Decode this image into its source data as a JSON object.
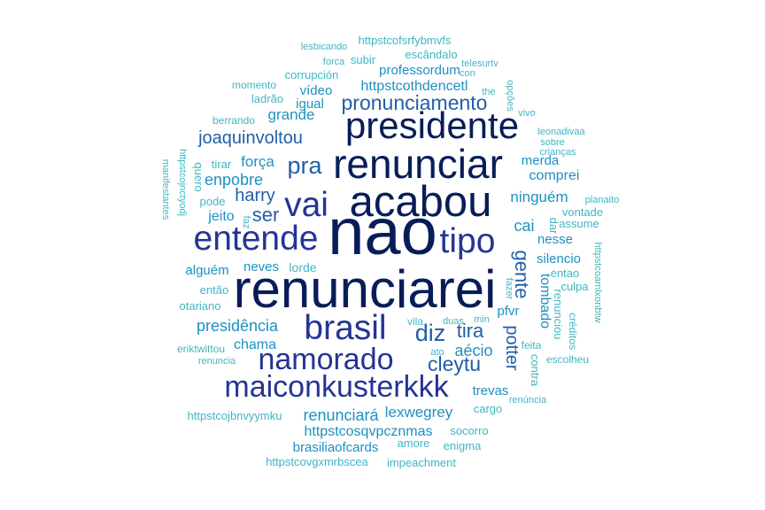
{
  "colors": {
    "background": "#ffffff",
    "scale": [
      "#081d58",
      "#253494",
      "#225ea8",
      "#1d91c0",
      "#41b6c4"
    ]
  },
  "words": [
    {
      "text": "nao",
      "weight": 20.0
    },
    {
      "text": "renunciarei",
      "weight": 16.0
    },
    {
      "text": "acabou",
      "weight": 13.0
    },
    {
      "text": "renunciar",
      "weight": 12.0
    },
    {
      "text": "presidente",
      "weight": 11.0
    },
    {
      "text": "brasil",
      "weight": 10.0
    },
    {
      "text": "vai",
      "weight": 10.0
    },
    {
      "text": "entende",
      "weight": 10.0
    },
    {
      "text": "tipo",
      "weight": 10.0
    },
    {
      "text": "maiconkusterkkk",
      "weight": 8.5
    },
    {
      "text": "namorado",
      "weight": 8.5
    },
    {
      "text": "pra",
      "weight": 6.5
    },
    {
      "text": "diz",
      "weight": 6.5
    },
    {
      "text": "pronunciamento",
      "weight": 5.5
    },
    {
      "text": "cleytu",
      "weight": 5.5
    },
    {
      "text": "ser",
      "weight": 5.0
    },
    {
      "text": "gente",
      "weight": 5.0
    },
    {
      "text": "tira",
      "weight": 5.0
    },
    {
      "text": "joaquinvoltou",
      "weight": 4.5
    },
    {
      "text": "harry",
      "weight": 4.5
    },
    {
      "text": "potter",
      "weight": 4.5
    },
    {
      "text": "enpobre",
      "weight": 4.0
    },
    {
      "text": "presidência",
      "weight": 4.0
    },
    {
      "text": "renunciará",
      "weight": 4.0
    },
    {
      "text": "cai",
      "weight": 4.0
    },
    {
      "text": "aécio",
      "weight": 4.0
    },
    {
      "text": "grande",
      "weight": 3.6
    },
    {
      "text": "força",
      "weight": 3.6
    },
    {
      "text": "ninguém",
      "weight": 3.6
    },
    {
      "text": "lexwegrey",
      "weight": 3.6
    },
    {
      "text": "jeito",
      "weight": 3.2
    },
    {
      "text": "httpstcothdencetl",
      "weight": 3.2
    },
    {
      "text": "comprei",
      "weight": 3.2
    },
    {
      "text": "tombado",
      "weight": 3.2
    },
    {
      "text": "chama",
      "weight": 3.2
    },
    {
      "text": "httpstcosqvpcznmas",
      "weight": 3.2
    },
    {
      "text": "professordum",
      "weight": 3.0
    },
    {
      "text": "vídeo",
      "weight": 3.0
    },
    {
      "text": "silencio",
      "weight": 3.0
    },
    {
      "text": "nesse",
      "weight": 3.0
    },
    {
      "text": "merda",
      "weight": 3.0
    },
    {
      "text": "neves",
      "weight": 3.0
    },
    {
      "text": "alguém",
      "weight": 3.0
    },
    {
      "text": "pfvr",
      "weight": 3.0
    },
    {
      "text": "trevas",
      "weight": 3.0
    },
    {
      "text": "brasiliaofcards",
      "weight": 3.0
    },
    {
      "text": "igual",
      "weight": 3.0
    },
    {
      "text": "lorde",
      "weight": 2.8
    },
    {
      "text": "corrupción",
      "weight": 2.6
    },
    {
      "text": "dar",
      "weight": 2.6
    },
    {
      "text": "tirar",
      "weight": 2.6
    },
    {
      "text": "pode",
      "weight": 2.6
    },
    {
      "text": "contra",
      "weight": 2.6
    },
    {
      "text": "ladrão",
      "weight": 2.6
    },
    {
      "text": "então",
      "weight": 2.6
    },
    {
      "text": "otariano",
      "weight": 2.6
    },
    {
      "text": "renunciou",
      "weight": 2.6
    },
    {
      "text": "amore",
      "weight": 2.6
    },
    {
      "text": "socorro",
      "weight": 2.6
    },
    {
      "text": "enigma",
      "weight": 2.4
    },
    {
      "text": "impeachment",
      "weight": 2.4
    },
    {
      "text": "httpstcovgxmrbscea",
      "weight": 2.4
    },
    {
      "text": "httpstcojbnvyymku",
      "weight": 2.4
    },
    {
      "text": "cargo",
      "weight": 2.4
    },
    {
      "text": "entao",
      "weight": 2.4
    },
    {
      "text": "culpa",
      "weight": 2.4
    },
    {
      "text": "vontade",
      "weight": 2.4
    },
    {
      "text": "assume",
      "weight": 2.4
    },
    {
      "text": "escândalo",
      "weight": 2.4
    },
    {
      "text": "httpstcofsrfybmvfs",
      "weight": 2.4
    },
    {
      "text": "subir",
      "weight": 2.4
    },
    {
      "text": "quero",
      "weight": 2.4
    },
    {
      "text": "momento",
      "weight": 2.2
    },
    {
      "text": "berrando",
      "weight": 2.2
    },
    {
      "text": "vila",
      "weight": 2.2
    },
    {
      "text": "feita",
      "weight": 2.2
    },
    {
      "text": "escolheu",
      "weight": 2.2
    },
    {
      "text": "créditos",
      "weight": 2.2
    },
    {
      "text": "eriktwittou",
      "weight": 2.2
    },
    {
      "text": "renuncia",
      "weight": 2.0
    },
    {
      "text": "renúncia",
      "weight": 2.0
    },
    {
      "text": "crianças",
      "weight": 2.0
    },
    {
      "text": "sobre",
      "weight": 2.0
    },
    {
      "text": "leonadivaa",
      "weight": 2.0
    },
    {
      "text": "planaito",
      "weight": 2.0
    },
    {
      "text": "httpstcoamlxonbtw",
      "weight": 2.0
    },
    {
      "text": "manifestantes",
      "weight": 2.0
    },
    {
      "text": "httpstcojnctyodj",
      "weight": 2.0
    },
    {
      "text": "lesbicando",
      "weight": 2.0
    },
    {
      "text": "forca",
      "weight": 2.0
    },
    {
      "text": "telesurtv",
      "weight": 2.0
    },
    {
      "text": "con",
      "weight": 2.0
    },
    {
      "text": "the",
      "weight": 2.0
    },
    {
      "text": "opções",
      "weight": 2.0
    },
    {
      "text": "vivo",
      "weight": 2.0
    },
    {
      "text": "faz",
      "weight": 2.0
    },
    {
      "text": "fazer",
      "weight": 2.0
    },
    {
      "text": "duas",
      "weight": 2.0
    },
    {
      "text": "min",
      "weight": 2.0
    },
    {
      "text": "ato",
      "weight": 2.0
    }
  ]
}
